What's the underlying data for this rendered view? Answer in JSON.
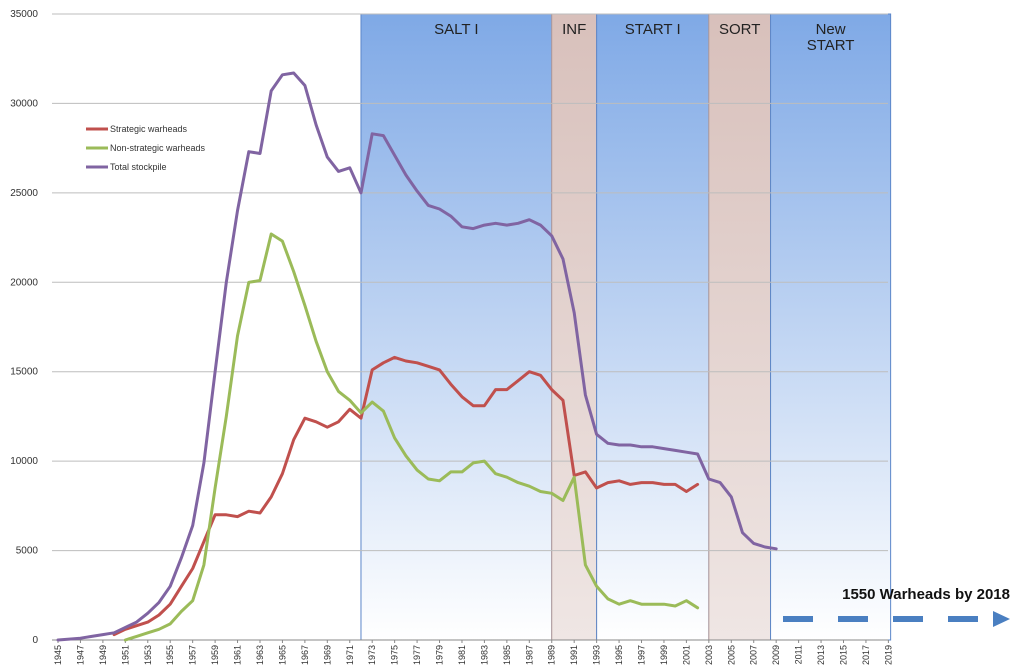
{
  "chart_data": {
    "type": "line",
    "ylim": [
      0,
      35000
    ],
    "yticks": [
      0,
      5000,
      10000,
      15000,
      20000,
      25000,
      30000,
      35000
    ],
    "xlim": [
      1945,
      2019
    ],
    "xticks": [
      1945,
      1947,
      1949,
      1951,
      1953,
      1955,
      1957,
      1959,
      1961,
      1963,
      1965,
      1967,
      1969,
      1971,
      1973,
      1975,
      1977,
      1979,
      1981,
      1983,
      1985,
      1987,
      1989,
      1991,
      1993,
      1995,
      1997,
      1999,
      2001,
      2003,
      2005,
      2007,
      2009,
      2011,
      2013,
      2015,
      2017,
      2019
    ],
    "grid": true,
    "legend": "top-left",
    "series": [
      {
        "name": "Strategic warheads",
        "color": "#c0504d",
        "points": [
          [
            1950,
            300
          ],
          [
            1951,
            600
          ],
          [
            1952,
            800
          ],
          [
            1953,
            1000
          ],
          [
            1954,
            1400
          ],
          [
            1955,
            2000
          ],
          [
            1956,
            3000
          ],
          [
            1957,
            4000
          ],
          [
            1958,
            5500
          ],
          [
            1959,
            7000
          ],
          [
            1960,
            7000
          ],
          [
            1961,
            6900
          ],
          [
            1962,
            7200
          ],
          [
            1963,
            7100
          ],
          [
            1964,
            8000
          ],
          [
            1965,
            9300
          ],
          [
            1966,
            11200
          ],
          [
            1967,
            12400
          ],
          [
            1968,
            12200
          ],
          [
            1969,
            11900
          ],
          [
            1970,
            12200
          ],
          [
            1971,
            12900
          ],
          [
            1972,
            12400
          ],
          [
            1973,
            15100
          ],
          [
            1974,
            15500
          ],
          [
            1975,
            15800
          ],
          [
            1976,
            15600
          ],
          [
            1977,
            15500
          ],
          [
            1978,
            15300
          ],
          [
            1979,
            15100
          ],
          [
            1980,
            14300
          ],
          [
            1981,
            13600
          ],
          [
            1982,
            13100
          ],
          [
            1983,
            13100
          ],
          [
            1984,
            14000
          ],
          [
            1985,
            14000
          ],
          [
            1986,
            14500
          ],
          [
            1987,
            15000
          ],
          [
            1988,
            14800
          ],
          [
            1989,
            14000
          ],
          [
            1990,
            13400
          ],
          [
            1991,
            9200
          ],
          [
            1992,
            9400
          ],
          [
            1993,
            8500
          ],
          [
            1994,
            8800
          ],
          [
            1995,
            8900
          ],
          [
            1996,
            8700
          ],
          [
            1997,
            8800
          ],
          [
            1998,
            8800
          ],
          [
            1999,
            8700
          ],
          [
            2000,
            8700
          ],
          [
            2001,
            8300
          ],
          [
            2002,
            8700
          ]
        ]
      },
      {
        "name": "Non-strategic warheads",
        "color": "#9bbb59",
        "points": [
          [
            1951,
            0
          ],
          [
            1952,
            200
          ],
          [
            1953,
            400
          ],
          [
            1954,
            600
          ],
          [
            1955,
            900
          ],
          [
            1956,
            1600
          ],
          [
            1957,
            2200
          ],
          [
            1958,
            4200
          ],
          [
            1959,
            8500
          ],
          [
            1960,
            12500
          ],
          [
            1961,
            17000
          ],
          [
            1962,
            20000
          ],
          [
            1963,
            20100
          ],
          [
            1964,
            22700
          ],
          [
            1965,
            22300
          ],
          [
            1966,
            20600
          ],
          [
            1967,
            18700
          ],
          [
            1968,
            16700
          ],
          [
            1969,
            15000
          ],
          [
            1970,
            13900
          ],
          [
            1971,
            13400
          ],
          [
            1972,
            12700
          ],
          [
            1973,
            13300
          ],
          [
            1974,
            12800
          ],
          [
            1975,
            11300
          ],
          [
            1976,
            10300
          ],
          [
            1977,
            9500
          ],
          [
            1978,
            9000
          ],
          [
            1979,
            8900
          ],
          [
            1980,
            9400
          ],
          [
            1981,
            9400
          ],
          [
            1982,
            9900
          ],
          [
            1983,
            10000
          ],
          [
            1984,
            9300
          ],
          [
            1985,
            9100
          ],
          [
            1986,
            8800
          ],
          [
            1987,
            8600
          ],
          [
            1988,
            8300
          ],
          [
            1989,
            8200
          ],
          [
            1990,
            7800
          ],
          [
            1991,
            9100
          ],
          [
            1992,
            4200
          ],
          [
            1993,
            3000
          ],
          [
            1994,
            2300
          ],
          [
            1995,
            2000
          ],
          [
            1996,
            2200
          ],
          [
            1997,
            2000
          ],
          [
            1998,
            2000
          ],
          [
            1999,
            2000
          ],
          [
            2000,
            1900
          ],
          [
            2001,
            2200
          ],
          [
            2002,
            1800
          ]
        ]
      },
      {
        "name": "Total stockpile",
        "color": "#8064a2",
        "points": [
          [
            1945,
            0
          ],
          [
            1946,
            50
          ],
          [
            1947,
            100
          ],
          [
            1948,
            200
          ],
          [
            1949,
            300
          ],
          [
            1950,
            400
          ],
          [
            1951,
            700
          ],
          [
            1952,
            1000
          ],
          [
            1953,
            1500
          ],
          [
            1954,
            2100
          ],
          [
            1955,
            3000
          ],
          [
            1956,
            4600
          ],
          [
            1957,
            6400
          ],
          [
            1958,
            9900
          ],
          [
            1959,
            15000
          ],
          [
            1960,
            20000
          ],
          [
            1961,
            24000
          ],
          [
            1962,
            27300
          ],
          [
            1963,
            27200
          ],
          [
            1964,
            30700
          ],
          [
            1965,
            31600
          ],
          [
            1966,
            31700
          ],
          [
            1967,
            31000
          ],
          [
            1968,
            28800
          ],
          [
            1969,
            27000
          ],
          [
            1970,
            26200
          ],
          [
            1971,
            26400
          ],
          [
            1972,
            25000
          ],
          [
            1973,
            28300
          ],
          [
            1974,
            28200
          ],
          [
            1975,
            27100
          ],
          [
            1976,
            26000
          ],
          [
            1977,
            25100
          ],
          [
            1978,
            24300
          ],
          [
            1979,
            24100
          ],
          [
            1980,
            23700
          ],
          [
            1981,
            23100
          ],
          [
            1982,
            23000
          ],
          [
            1983,
            23200
          ],
          [
            1984,
            23300
          ],
          [
            1985,
            23200
          ],
          [
            1986,
            23300
          ],
          [
            1987,
            23500
          ],
          [
            1988,
            23200
          ],
          [
            1989,
            22600
          ],
          [
            1990,
            21300
          ],
          [
            1991,
            18300
          ],
          [
            1992,
            13700
          ],
          [
            1993,
            11500
          ],
          [
            1994,
            11000
          ],
          [
            1995,
            10900
          ],
          [
            1996,
            10900
          ],
          [
            1997,
            10800
          ],
          [
            1998,
            10800
          ],
          [
            1999,
            10700
          ],
          [
            2000,
            10600
          ],
          [
            2001,
            10500
          ],
          [
            2002,
            10400
          ],
          [
            2003,
            9000
          ],
          [
            2004,
            8800
          ],
          [
            2005,
            8000
          ],
          [
            2006,
            6000
          ],
          [
            2007,
            5400
          ],
          [
            2008,
            5200
          ],
          [
            2009,
            5100
          ]
        ]
      }
    ],
    "bands": [
      {
        "label": "SALT I",
        "start": 1972,
        "end": 1989,
        "color": "#8fb4e8"
      },
      {
        "label": "INF",
        "start": 1989,
        "end": 1993,
        "color": "#dcc6c2"
      },
      {
        "label": "START I",
        "start": 1993,
        "end": 2003,
        "color": "#8fb4e8"
      },
      {
        "label": "SORT",
        "start": 2003,
        "end": 2008.5,
        "color": "#dcc6c2"
      },
      {
        "label": "New START",
        "label_lines": [
          "New",
          "START"
        ],
        "start": 2008.5,
        "end": 2019.2,
        "color": "#8fb4e8"
      }
    ],
    "annotation": {
      "text": "1550 Warheads by 2018",
      "color": "#4a7fc1"
    }
  }
}
